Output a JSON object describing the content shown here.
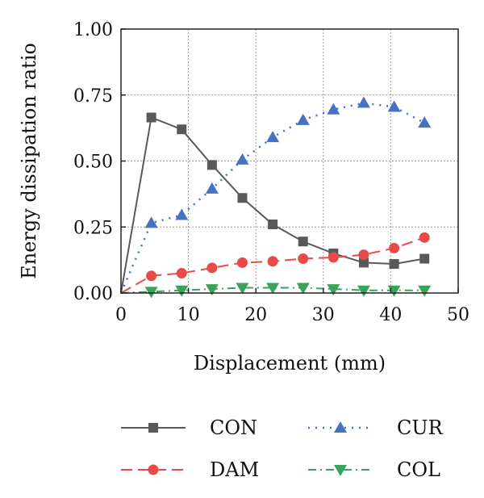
{
  "chart_data": {
    "type": "line",
    "title": "",
    "xlabel": "Displacement (mm)",
    "ylabel": "Energy dissipation ratio",
    "xlim": [
      0,
      50
    ],
    "ylim": [
      0,
      1
    ],
    "xticks": [
      "0",
      "10",
      "20",
      "30",
      "40",
      "50"
    ],
    "yticks": [
      "0.00",
      "0.25",
      "0.50",
      "0.75",
      "1.00"
    ],
    "grid": true,
    "legend_position": "bottom",
    "series": [
      {
        "name": "CON",
        "color": "#595959",
        "line_style": "solid",
        "marker": "square",
        "x": [
          0,
          4.5,
          9,
          13.5,
          18,
          22.5,
          27,
          31.5,
          36,
          40.5,
          45
        ],
        "y": [
          0,
          0.665,
          0.62,
          0.485,
          0.36,
          0.26,
          0.195,
          0.15,
          0.115,
          0.11,
          0.13
        ]
      },
      {
        "name": "CUR",
        "color": "#4472c4",
        "line_style": "dotted",
        "marker": "triangle-up",
        "x": [
          0,
          4.5,
          9,
          13.5,
          18,
          22.5,
          27,
          31.5,
          36,
          40.5,
          45
        ],
        "y": [
          0,
          0.265,
          0.295,
          0.395,
          0.505,
          0.59,
          0.655,
          0.695,
          0.72,
          0.705,
          0.645
        ]
      },
      {
        "name": "DAM",
        "color": "#e84a4a",
        "line_style": "dashed",
        "marker": "circle",
        "x": [
          0,
          4.5,
          9,
          13.5,
          18,
          22.5,
          27,
          31.5,
          36,
          40.5,
          45
        ],
        "y": [
          0,
          0.065,
          0.075,
          0.095,
          0.115,
          0.12,
          0.13,
          0.135,
          0.145,
          0.17,
          0.21
        ]
      },
      {
        "name": "COL",
        "color": "#3aa35a",
        "line_style": "dashdot",
        "marker": "triangle-down",
        "x": [
          0,
          4.5,
          9,
          13.5,
          18,
          22.5,
          27,
          31.5,
          36,
          40.5,
          45
        ],
        "y": [
          0,
          0.005,
          0.01,
          0.015,
          0.02,
          0.02,
          0.02,
          0.015,
          0.01,
          0.01,
          0.01
        ]
      }
    ]
  }
}
